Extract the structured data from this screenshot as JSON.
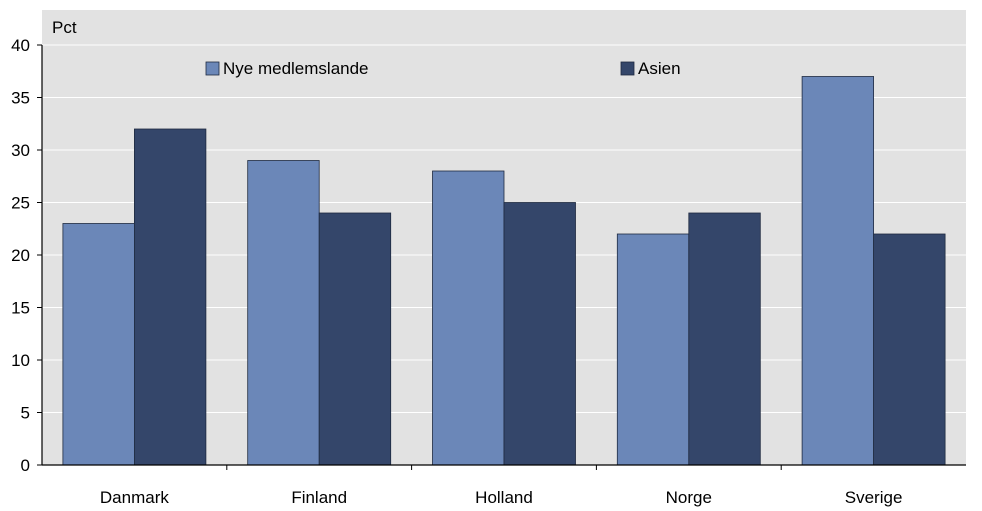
{
  "chart_data": {
    "type": "bar",
    "title": "",
    "xlabel": "",
    "ylabel": "Pct",
    "ylim": [
      0,
      40
    ],
    "yticks": [
      0,
      5,
      10,
      15,
      20,
      25,
      30,
      35,
      40
    ],
    "grid": true,
    "legend_position": "top-center",
    "categories": [
      "Danmark",
      "Finland",
      "Holland",
      "Norge",
      "Sverige"
    ],
    "series": [
      {
        "name": "Nye medlemslande",
        "color": "#6b87b8",
        "values": [
          23,
          29,
          28,
          22,
          37
        ]
      },
      {
        "name": "Asien",
        "color": "#34466a",
        "values": [
          32,
          24,
          25,
          24,
          22
        ]
      }
    ],
    "colors": {
      "plot_background": "#e2e2e2",
      "gridline": "#ffffff",
      "axis": "#000000"
    }
  }
}
